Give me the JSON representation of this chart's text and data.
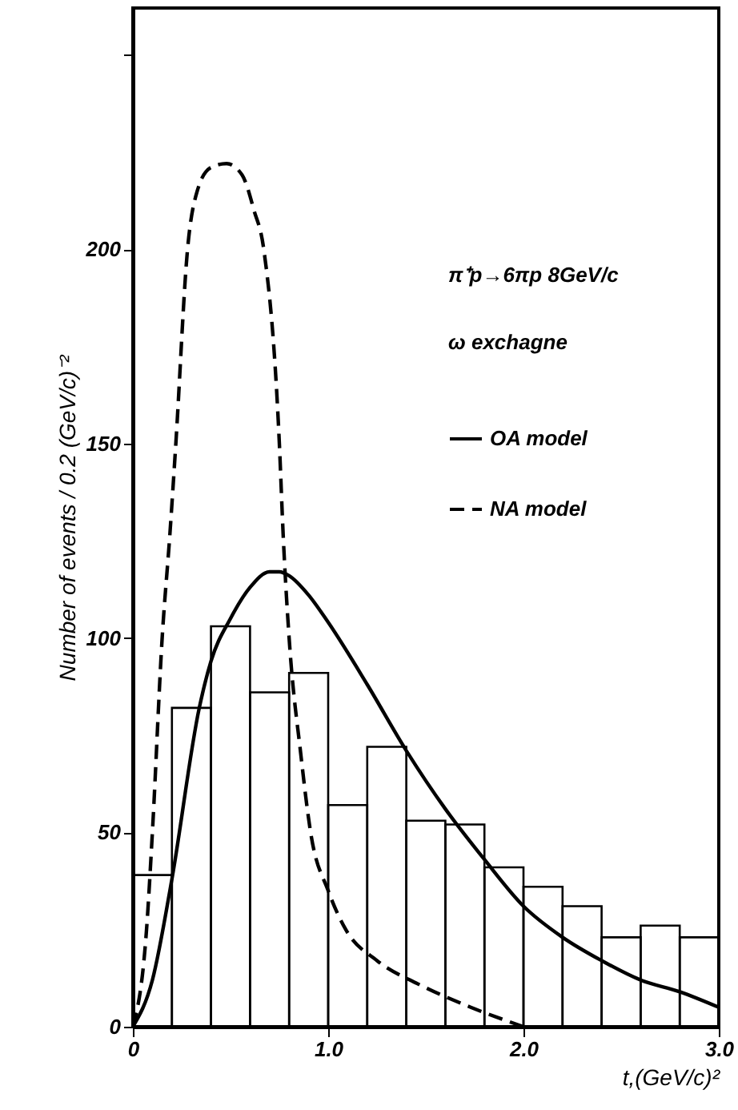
{
  "chart_data": {
    "type": "histogram",
    "xlabel": "t,(GeV/c)²",
    "ylabel": "Number of events / 0.2 (GeV/c)⁻²",
    "annotations": [
      "π⁺p→6πp 8GeV/c",
      "ω exchagne"
    ],
    "bins": [
      0,
      0.2,
      0.4,
      0.6,
      0.8,
      1.0,
      1.2,
      1.4,
      1.6,
      1.8,
      2.0,
      2.2,
      2.4,
      2.6,
      2.8,
      3.0
    ],
    "values": [
      39,
      82,
      103,
      86,
      91,
      57,
      72,
      53,
      52,
      41,
      36,
      31,
      23,
      26,
      23
    ],
    "color": "#000000",
    "series": [
      {
        "type": "line",
        "name": "OA model",
        "color": "#000000",
        "line_style": "solid",
        "x": [
          0,
          0.1,
          0.2,
          0.34,
          0.4,
          0.5,
          0.6,
          0.7,
          0.75,
          0.8,
          0.9,
          1.0,
          1.2,
          1.4,
          1.6,
          1.8,
          2.0,
          2.2,
          2.4,
          2.6,
          2.8,
          3.0
        ],
        "values": [
          0,
          12,
          38,
          82,
          94,
          105,
          113,
          117,
          117,
          116,
          111,
          104,
          88,
          71,
          56,
          43,
          31,
          23,
          17,
          12,
          9,
          5
        ]
      },
      {
        "type": "line",
        "name": "NA model",
        "color": "#000000",
        "line_style": "dashed",
        "x": [
          0,
          0.07,
          0.1,
          0.15,
          0.19,
          0.22,
          0.28,
          0.33,
          0.4,
          0.48,
          0.56,
          0.62,
          0.67,
          0.75,
          0.77,
          0.8,
          0.86,
          0.91,
          1.0,
          1.09,
          1.25,
          1.46,
          1.73,
          2.0
        ],
        "values": [
          0,
          25,
          50,
          100,
          127,
          150,
          200,
          215,
          221,
          222,
          219,
          210,
          200,
          150,
          126,
          100,
          70,
          50,
          35,
          25,
          17,
          11,
          5,
          0
        ]
      }
    ],
    "xlim": [
      0,
      3.0
    ],
    "xticks": [
      0,
      {
        "value": 1,
        "label": "1.0"
      },
      {
        "value": 2,
        "label": "2.0"
      },
      {
        "value": 3,
        "label": "3.0"
      }
    ],
    "ylim": [
      0,
      262
    ],
    "yticks": [
      0,
      50,
      100,
      150,
      200,
      {
        "value": 250,
        "label": null
      }
    ],
    "grid": false,
    "legend": "top right",
    "marker": "none"
  }
}
